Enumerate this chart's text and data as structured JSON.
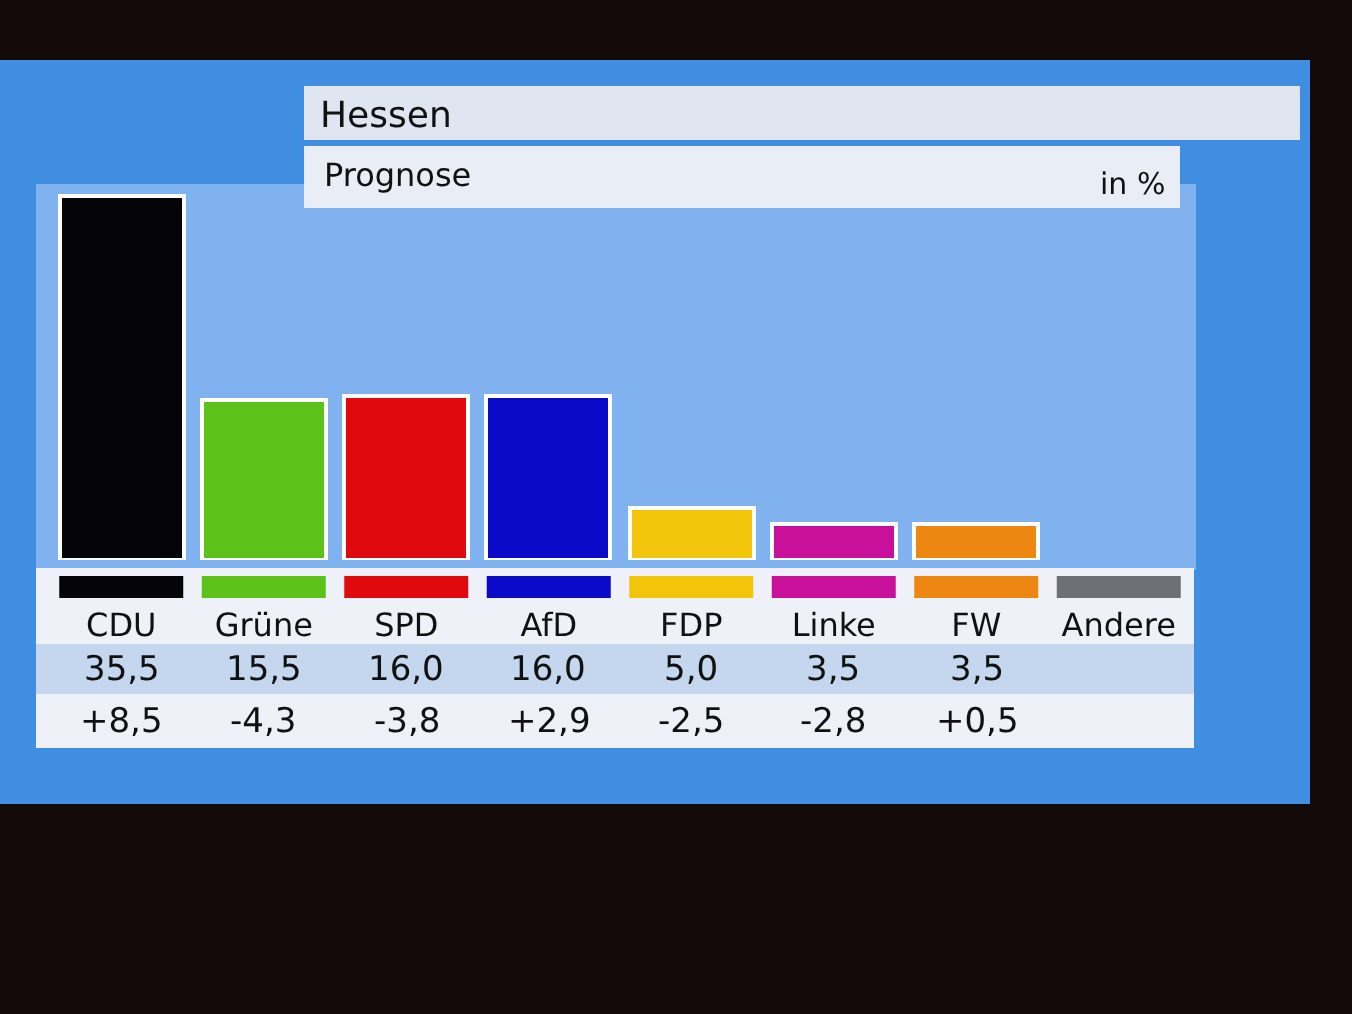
{
  "chart_data": {
    "type": "bar",
    "title": "Hessen",
    "subtitle": "Prognose",
    "ylabel": "in %",
    "categories": [
      "CDU",
      "Grüne",
      "SPD",
      "AfD",
      "FDP",
      "Linke",
      "FW",
      "Andere"
    ],
    "values": [
      35.5,
      15.5,
      16.0,
      16.0,
      5.0,
      3.5,
      3.5,
      null
    ],
    "value_labels": [
      "35,5",
      "15,5",
      "16,0",
      "16,0",
      "5,0",
      "3,5",
      "3,5",
      null
    ],
    "colors": [
      "#050508",
      "#5cc21a",
      "#e00a0e",
      "#0a0ac8",
      "#f2c40a",
      "#c8109a",
      "#ee8612",
      "#6e7078"
    ],
    "annotations": [
      "+8,5",
      "-4,3",
      "-3,8",
      "+2,9",
      "-2,5",
      "-2,8",
      "+0,5"
    ],
    "ylim": [
      0,
      36
    ],
    "tick_labels": "x"
  }
}
